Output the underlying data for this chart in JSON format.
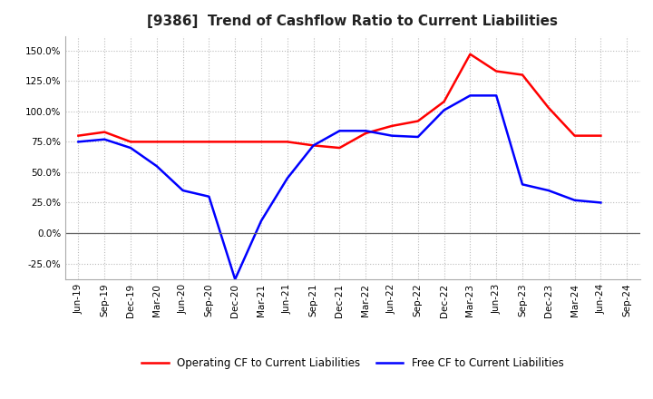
{
  "title": "[9386]  Trend of Cashflow Ratio to Current Liabilities",
  "x_labels": [
    "Jun-19",
    "Sep-19",
    "Dec-19",
    "Mar-20",
    "Jun-20",
    "Sep-20",
    "Dec-20",
    "Mar-21",
    "Jun-21",
    "Sep-21",
    "Dec-21",
    "Mar-22",
    "Jun-22",
    "Sep-22",
    "Dec-22",
    "Mar-23",
    "Jun-23",
    "Sep-23",
    "Dec-23",
    "Mar-24",
    "Jun-24",
    "Sep-24"
  ],
  "operating_cf": [
    0.8,
    0.83,
    0.75,
    0.75,
    0.75,
    0.75,
    0.75,
    0.75,
    0.75,
    0.72,
    0.7,
    0.82,
    0.88,
    0.92,
    1.08,
    1.47,
    1.33,
    1.3,
    1.03,
    0.8,
    0.8,
    null
  ],
  "free_cf": [
    0.75,
    0.77,
    0.7,
    0.55,
    0.35,
    0.3,
    -0.38,
    0.1,
    0.45,
    0.72,
    0.84,
    0.84,
    0.8,
    0.79,
    1.01,
    1.13,
    1.13,
    0.4,
    0.35,
    0.27,
    0.25,
    null
  ],
  "operating_color": "#FF0000",
  "free_color": "#0000FF",
  "background_color": "#FFFFFF",
  "grid_color": "#BBBBBB",
  "title_fontsize": 11,
  "tick_fontsize": 7.5,
  "legend_fontsize": 8.5,
  "legend_labels": [
    "Operating CF to Current Liabilities",
    "Free CF to Current Liabilities"
  ],
  "yticks": [
    -0.25,
    0.0,
    0.25,
    0.5,
    0.75,
    1.0,
    1.25,
    1.5
  ],
  "ylim": [
    -0.38,
    1.62
  ]
}
